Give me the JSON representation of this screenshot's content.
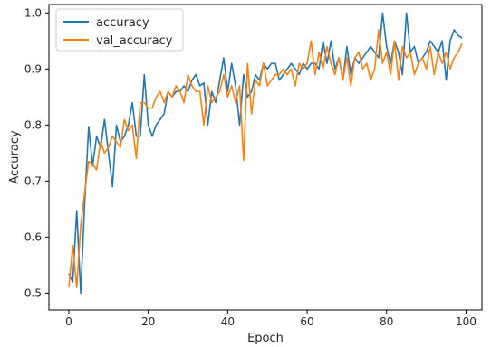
{
  "chart_data": {
    "type": "line",
    "xlabel": "Epoch",
    "ylabel": "Accuracy",
    "xlim": [
      -5,
      104
    ],
    "ylim": [
      0.47,
      1.015
    ],
    "xticks": [
      0,
      20,
      40,
      60,
      80,
      100
    ],
    "xtick_labels": [
      "0",
      "20",
      "40",
      "60",
      "80",
      "100"
    ],
    "yticks": [
      0.5,
      0.6,
      0.7,
      0.8,
      0.9,
      1.0
    ],
    "ytick_labels": [
      "0.5",
      "0.6",
      "0.7",
      "0.8",
      "0.9",
      "1.0"
    ],
    "grid": false,
    "legend_position": "top-left",
    "series": [
      {
        "name": "accuracy",
        "color": "#1f77b4",
        "x": [
          0,
          1,
          2,
          3,
          4,
          5,
          6,
          7,
          8,
          9,
          10,
          11,
          12,
          13,
          14,
          15,
          16,
          17,
          18,
          19,
          20,
          21,
          22,
          23,
          24,
          25,
          26,
          27,
          28,
          29,
          30,
          31,
          32,
          33,
          34,
          35,
          36,
          37,
          38,
          39,
          40,
          41,
          42,
          43,
          44,
          45,
          46,
          47,
          48,
          49,
          50,
          51,
          52,
          53,
          54,
          55,
          56,
          57,
          58,
          59,
          60,
          61,
          62,
          63,
          64,
          65,
          66,
          67,
          68,
          69,
          70,
          71,
          72,
          73,
          74,
          75,
          76,
          77,
          78,
          79,
          80,
          81,
          82,
          83,
          84,
          85,
          86,
          87,
          88,
          89,
          90,
          91,
          92,
          93,
          94,
          95,
          96,
          97,
          98,
          99
        ],
        "values": [
          0.535,
          0.52,
          0.647,
          0.5,
          0.66,
          0.797,
          0.727,
          0.78,
          0.76,
          0.81,
          0.75,
          0.69,
          0.8,
          0.77,
          0.78,
          0.8,
          0.84,
          0.78,
          0.78,
          0.89,
          0.8,
          0.78,
          0.8,
          0.81,
          0.82,
          0.86,
          0.85,
          0.86,
          0.86,
          0.87,
          0.86,
          0.88,
          0.89,
          0.87,
          0.875,
          0.8,
          0.86,
          0.84,
          0.88,
          0.92,
          0.86,
          0.91,
          0.87,
          0.8,
          0.89,
          0.85,
          0.86,
          0.89,
          0.88,
          0.91,
          0.9,
          0.91,
          0.91,
          0.88,
          0.89,
          0.9,
          0.91,
          0.9,
          0.89,
          0.91,
          0.9,
          0.91,
          0.91,
          0.9,
          0.95,
          0.91,
          0.95,
          0.9,
          0.92,
          0.88,
          0.94,
          0.89,
          0.92,
          0.91,
          0.92,
          0.93,
          0.94,
          0.93,
          0.92,
          1.0,
          0.94,
          0.91,
          0.95,
          0.93,
          0.89,
          1.0,
          0.93,
          0.94,
          0.91,
          0.92,
          0.93,
          0.95,
          0.94,
          0.93,
          0.95,
          0.88,
          0.95,
          0.97,
          0.96,
          0.955
        ]
      },
      {
        "name": "val_accuracy",
        "color": "#ff7f0e",
        "x": [
          0,
          1,
          2,
          3,
          4,
          5,
          6,
          7,
          8,
          9,
          10,
          11,
          12,
          13,
          14,
          15,
          16,
          17,
          18,
          19,
          20,
          21,
          22,
          23,
          24,
          25,
          26,
          27,
          28,
          29,
          30,
          31,
          32,
          33,
          34,
          35,
          36,
          37,
          38,
          39,
          40,
          41,
          42,
          43,
          44,
          45,
          46,
          47,
          48,
          49,
          50,
          51,
          52,
          53,
          54,
          55,
          56,
          57,
          58,
          59,
          60,
          61,
          62,
          63,
          64,
          65,
          66,
          67,
          68,
          69,
          70,
          71,
          72,
          73,
          74,
          75,
          76,
          77,
          78,
          79,
          80,
          81,
          82,
          83,
          84,
          85,
          86,
          87,
          88,
          89,
          90,
          91,
          92,
          93,
          94,
          95,
          96,
          97,
          98,
          99
        ],
        "values": [
          0.51,
          0.585,
          0.51,
          0.62,
          0.68,
          0.735,
          0.73,
          0.72,
          0.77,
          0.75,
          0.76,
          0.78,
          0.77,
          0.76,
          0.81,
          0.79,
          0.8,
          0.74,
          0.84,
          0.84,
          0.83,
          0.83,
          0.85,
          0.86,
          0.84,
          0.86,
          0.85,
          0.87,
          0.86,
          0.84,
          0.89,
          0.87,
          0.86,
          0.86,
          0.8,
          0.87,
          0.84,
          0.85,
          0.86,
          0.89,
          0.85,
          0.87,
          0.84,
          0.87,
          0.737,
          0.91,
          0.82,
          0.88,
          0.87,
          0.91,
          0.87,
          0.88,
          0.89,
          0.89,
          0.9,
          0.89,
          0.9,
          0.87,
          0.91,
          0.9,
          0.91,
          0.95,
          0.89,
          0.93,
          0.9,
          0.94,
          0.91,
          0.89,
          0.92,
          0.88,
          0.92,
          0.87,
          0.92,
          0.93,
          0.9,
          0.91,
          0.88,
          0.9,
          0.97,
          0.91,
          0.93,
          0.89,
          0.95,
          0.88,
          0.94,
          0.92,
          0.93,
          0.89,
          0.91,
          0.92,
          0.9,
          0.94,
          0.89,
          0.93,
          0.91,
          0.93,
          0.9,
          0.92,
          0.93,
          0.945
        ]
      }
    ]
  }
}
